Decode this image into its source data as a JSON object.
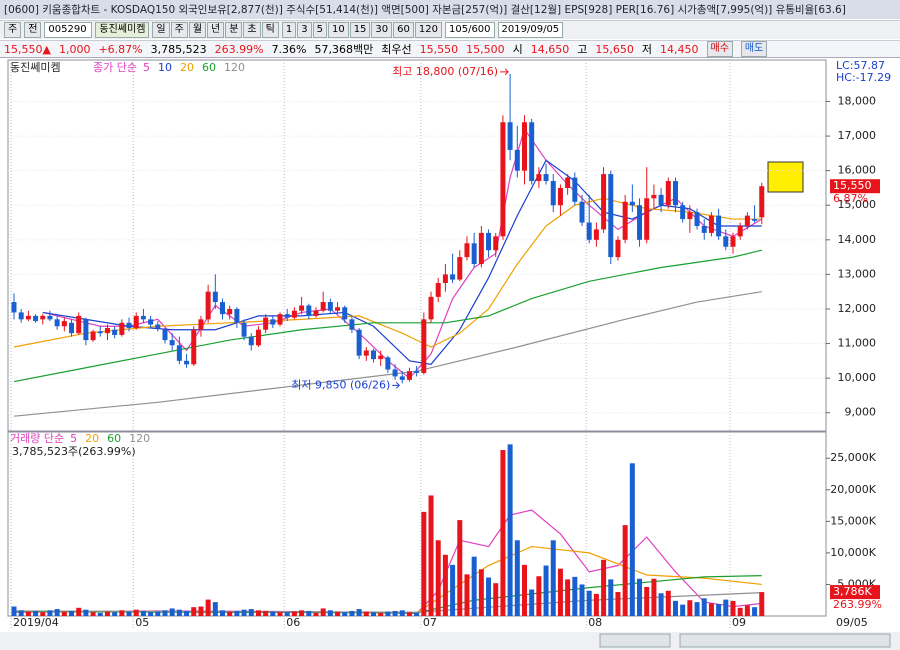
{
  "title_bar": {
    "text": "[0600] 키움종합차트 - KOSDAQ150 외국인보유[2,877(천)] 주식수[51,414(천)] 액면[500] 자본금[257(억)] 결산[12월] EPS[928] PER[16.76] 시가총액[7,995(억)] 유통비율[63.6]"
  },
  "toolbar": {
    "period": "주",
    "market": "전",
    "code": "005290",
    "name": "동진쎄미켐",
    "units": [
      "일",
      "주",
      "월",
      "년",
      "분",
      "초",
      "틱"
    ],
    "intervals": [
      "1",
      "3",
      "5",
      "10",
      "15",
      "30",
      "60",
      "120"
    ],
    "count": "105/600",
    "date": "2019/09/05"
  },
  "quote": {
    "price": "15,550▲",
    "change": "1,000",
    "change_pct": "+6.87%",
    "volume": "3,785,523",
    "volume_ratio": "263.99%",
    "turnover": "7.36%",
    "amount": "57,368백만",
    "best_label": "최우선",
    "ask": "15,550",
    "bid": "15,500",
    "open_label": "시",
    "open": "14,650",
    "high_label": "고",
    "high": "15,650",
    "low_label": "저",
    "low": "14,450",
    "buy": "매수",
    "sell": "매도"
  },
  "chart_data": {
    "type": "candlestick",
    "name": "동진쎄미켐",
    "price_legend": "종가 단순",
    "up_color": "#e8141c",
    "down_color": "#1a5fd0",
    "categories": [
      "2019/04",
      null,
      null,
      null,
      null,
      null,
      null,
      null,
      null,
      null,
      null,
      null,
      null,
      null,
      null,
      null,
      null,
      "05",
      null,
      null,
      null,
      null,
      null,
      null,
      null,
      null,
      null,
      null,
      null,
      null,
      null,
      null,
      null,
      null,
      null,
      null,
      null,
      null,
      "06",
      null,
      null,
      null,
      null,
      null,
      null,
      null,
      null,
      null,
      null,
      null,
      null,
      null,
      null,
      null,
      null,
      null,
      null,
      "07",
      null,
      null,
      null,
      null,
      null,
      null,
      null,
      null,
      null,
      null,
      null,
      null,
      null,
      null,
      null,
      null,
      null,
      null,
      null,
      null,
      null,
      null,
      "08",
      null,
      null,
      null,
      null,
      null,
      null,
      null,
      null,
      null,
      null,
      null,
      null,
      null,
      null,
      null,
      null,
      null,
      null,
      null,
      "09",
      null,
      null,
      null,
      null
    ],
    "ohlc": [
      [
        12200,
        12450,
        11700,
        11900
      ],
      [
        11900,
        12000,
        11600,
        11700
      ],
      [
        11700,
        11950,
        11650,
        11800
      ],
      [
        11800,
        11850,
        11600,
        11650
      ],
      [
        11700,
        11850,
        11550,
        11800
      ],
      [
        11800,
        11950,
        11650,
        11700
      ],
      [
        11700,
        11800,
        11400,
        11500
      ],
      [
        11500,
        11750,
        11350,
        11650
      ],
      [
        11600,
        11700,
        11200,
        11300
      ],
      [
        11300,
        11900,
        11250,
        11800
      ],
      [
        11700,
        11750,
        10950,
        11100
      ],
      [
        11100,
        11400,
        11050,
        11350
      ],
      [
        11350,
        11500,
        11200,
        11300
      ],
      [
        11300,
        11550,
        11100,
        11450
      ],
      [
        11400,
        11500,
        11150,
        11250
      ],
      [
        11250,
        11700,
        11200,
        11600
      ],
      [
        11600,
        11750,
        11350,
        11450
      ],
      [
        11450,
        11900,
        11400,
        11800
      ],
      [
        11800,
        12000,
        11600,
        11700
      ],
      [
        11700,
        11800,
        11450,
        11550
      ],
      [
        11550,
        11650,
        11350,
        11450
      ],
      [
        11400,
        11450,
        11000,
        11100
      ],
      [
        11100,
        11300,
        10800,
        10950
      ],
      [
        10950,
        11200,
        10400,
        10500
      ],
      [
        10500,
        10700,
        10300,
        10400
      ],
      [
        10400,
        11500,
        10350,
        11400
      ],
      [
        11400,
        11800,
        11200,
        11700
      ],
      [
        11700,
        12700,
        11600,
        12500
      ],
      [
        12500,
        13000,
        12000,
        12200
      ],
      [
        12200,
        12300,
        11700,
        11850
      ],
      [
        11850,
        12100,
        11700,
        12000
      ],
      [
        12000,
        12050,
        11450,
        11600
      ],
      [
        11600,
        11700,
        11100,
        11200
      ],
      [
        11200,
        11300,
        10800,
        10950
      ],
      [
        10950,
        11500,
        10900,
        11400
      ],
      [
        11400,
        11850,
        11300,
        11750
      ],
      [
        11700,
        11800,
        11450,
        11550
      ],
      [
        11550,
        11900,
        11500,
        11850
      ],
      [
        11850,
        12000,
        11650,
        11750
      ],
      [
        11750,
        12050,
        11700,
        11950
      ],
      [
        11950,
        12350,
        11850,
        12100
      ],
      [
        12100,
        12150,
        11700,
        11800
      ],
      [
        11800,
        12050,
        11750,
        11950
      ],
      [
        11950,
        12500,
        11900,
        12200
      ],
      [
        12200,
        12300,
        11850,
        11950
      ],
      [
        11950,
        12200,
        11850,
        12050
      ],
      [
        12050,
        12100,
        11600,
        11700
      ],
      [
        11700,
        11800,
        11300,
        11400
      ],
      [
        11400,
        11450,
        10550,
        10650
      ],
      [
        10650,
        10900,
        10500,
        10800
      ],
      [
        10800,
        10850,
        10450,
        10550
      ],
      [
        10550,
        10800,
        10350,
        10650
      ],
      [
        10600,
        10650,
        10150,
        10250
      ],
      [
        10250,
        10400,
        9950,
        10050
      ],
      [
        10050,
        10200,
        9850,
        9950
      ],
      [
        9950,
        10300,
        9900,
        10200
      ],
      [
        10200,
        10350,
        10050,
        10150
      ],
      [
        10150,
        11900,
        10100,
        11700
      ],
      [
        11700,
        12500,
        11600,
        12350
      ],
      [
        12350,
        12900,
        12200,
        12750
      ],
      [
        12750,
        13300,
        12500,
        13000
      ],
      [
        13000,
        13600,
        12750,
        12850
      ],
      [
        12850,
        13700,
        12800,
        13500
      ],
      [
        13500,
        14100,
        13400,
        13900
      ],
      [
        13900,
        14200,
        13200,
        13300
      ],
      [
        13300,
        14400,
        13200,
        14200
      ],
      [
        14200,
        14300,
        13500,
        13700
      ],
      [
        13700,
        14200,
        13500,
        14100
      ],
      [
        14100,
        17600,
        14000,
        17400
      ],
      [
        17400,
        18800,
        16300,
        16600
      ],
      [
        16600,
        17300,
        15800,
        16000
      ],
      [
        16000,
        17600,
        15600,
        17400
      ],
      [
        17400,
        17500,
        15600,
        15700
      ],
      [
        15700,
        16100,
        15500,
        15900
      ],
      [
        15900,
        16200,
        15600,
        15700
      ],
      [
        15700,
        15900,
        14800,
        15000
      ],
      [
        15000,
        15600,
        14700,
        15500
      ],
      [
        15500,
        15900,
        15300,
        15800
      ],
      [
        15800,
        15950,
        15000,
        15100
      ],
      [
        15100,
        15300,
        14400,
        14500
      ],
      [
        14500,
        15300,
        13900,
        14000
      ],
      [
        14000,
        14500,
        13800,
        14300
      ],
      [
        14300,
        16100,
        14200,
        15900
      ],
      [
        15900,
        16000,
        13300,
        13500
      ],
      [
        13500,
        14100,
        13400,
        14000
      ],
      [
        14000,
        15300,
        13900,
        15100
      ],
      [
        15100,
        15600,
        14800,
        15000
      ],
      [
        15000,
        15200,
        13800,
        14000
      ],
      [
        14000,
        16100,
        13900,
        15200
      ],
      [
        15200,
        15600,
        14900,
        15300
      ],
      [
        15300,
        15500,
        14800,
        15000
      ],
      [
        15000,
        15800,
        14900,
        15700
      ],
      [
        15700,
        15800,
        14800,
        15000
      ],
      [
        15000,
        15100,
        14500,
        14600
      ],
      [
        14600,
        15000,
        14200,
        14800
      ],
      [
        14800,
        14900,
        14300,
        14400
      ],
      [
        14400,
        14600,
        14000,
        14200
      ],
      [
        14200,
        14800,
        14100,
        14700
      ],
      [
        14700,
        14900,
        14000,
        14100
      ],
      [
        14100,
        14300,
        13700,
        13800
      ],
      [
        13800,
        14200,
        13600,
        14100
      ],
      [
        14100,
        14500,
        14000,
        14400
      ],
      [
        14400,
        14800,
        14300,
        14700
      ],
      [
        14600,
        15000,
        14500,
        14550
      ],
      [
        14650,
        15650,
        14450,
        15550
      ]
    ],
    "ylim": [
      8500,
      19200
    ],
    "yticks": [
      {
        "value": 9000,
        "label": "9,000"
      },
      {
        "value": 10000,
        "label": "10,000"
      },
      {
        "value": 11000,
        "label": "11,000"
      },
      {
        "value": 12000,
        "label": "12,000"
      },
      {
        "value": 13000,
        "label": "13,000"
      },
      {
        "value": 14000,
        "label": "14,000"
      },
      {
        "value": 15000,
        "label": "15,000"
      },
      {
        "value": 16000,
        "label": "16,000"
      },
      {
        "value": 17000,
        "label": "17,000"
      },
      {
        "value": 18000,
        "label": "18,000"
      }
    ],
    "ma_lines": [
      {
        "name": "5",
        "color": "#e040c0",
        "x": [
          4,
          8,
          12,
          16,
          20,
          24,
          28,
          32,
          36,
          40,
          44,
          48,
          52,
          55,
          58,
          61,
          64,
          67,
          69,
          71,
          74,
          77,
          80,
          84,
          88,
          92,
          96,
          100,
          104
        ],
        "values": [
          11900,
          11700,
          11500,
          11500,
          11700,
          10800,
          12100,
          11500,
          11600,
          11900,
          12000,
          11300,
          10500,
          10000,
          10700,
          12300,
          13200,
          13600,
          15800,
          17200,
          16300,
          15600,
          15000,
          14300,
          14800,
          15200,
          14400,
          14100,
          14600
        ]
      },
      {
        "name": "10",
        "color": "#1a3fd0",
        "x": [
          4,
          10,
          16,
          22,
          28,
          34,
          40,
          46,
          50,
          55,
          58,
          62,
          66,
          70,
          74,
          78,
          82,
          86,
          90,
          94,
          98,
          104
        ],
        "values": [
          11900,
          11700,
          11500,
          11400,
          11400,
          11800,
          11800,
          11900,
          11500,
          10500,
          10400,
          11400,
          12900,
          14700,
          16300,
          15700,
          14800,
          14600,
          15000,
          14900,
          14400,
          14400
        ]
      },
      {
        "name": "20",
        "color": "#f0a000",
        "x": [
          0,
          10,
          20,
          30,
          40,
          48,
          54,
          58,
          62,
          66,
          70,
          74,
          78,
          82,
          88,
          94,
          100,
          104
        ],
        "values": [
          10900,
          11300,
          11500,
          11600,
          11700,
          11800,
          11300,
          10900,
          11300,
          12000,
          13300,
          14400,
          15000,
          15200,
          14900,
          14800,
          14600,
          14600
        ]
      },
      {
        "name": "60",
        "color": "#1aa030",
        "x": [
          0,
          10,
          20,
          30,
          40,
          50,
          60,
          66,
          72,
          80,
          90,
          100,
          104
        ],
        "values": [
          9900,
          10300,
          10700,
          11100,
          11400,
          11600,
          11600,
          11800,
          12300,
          12800,
          13200,
          13500,
          13700
        ]
      },
      {
        "name": "120",
        "color": "#909090",
        "x": [
          0,
          20,
          40,
          56,
          70,
          85,
          95,
          104
        ],
        "values": [
          8900,
          9300,
          9800,
          10200,
          10900,
          11700,
          12200,
          12500
        ]
      }
    ],
    "lc_label": "LC:57.87",
    "hc_label": "HC:-17.29",
    "annotations": {
      "high": "최고 18,800 (07/16)",
      "low": "최저 9,850 (06/26)"
    },
    "last_price": {
      "value": 15550,
      "label": "15,550"
    },
    "last_change": "6.87%",
    "last_date": "09/05",
    "volume": {
      "legend": "거래량 단순",
      "summary": "3,785,523주(263.99%)",
      "values": [
        1500,
        900,
        700,
        800,
        600,
        900,
        1100,
        700,
        800,
        1300,
        1000,
        600,
        500,
        700,
        600,
        900,
        700,
        1000,
        800,
        600,
        700,
        900,
        1200,
        1000,
        800,
        1400,
        1500,
        2600,
        2200,
        900,
        700,
        800,
        1000,
        1100,
        900,
        800,
        700,
        600,
        600,
        700,
        900,
        800,
        500,
        1200,
        900,
        700,
        600,
        800,
        1100,
        700,
        600,
        500,
        700,
        800,
        900,
        600,
        500,
        16500,
        19100,
        12000,
        9700,
        8100,
        15200,
        6600,
        9400,
        7400,
        6100,
        5200,
        26300,
        27200,
        12000,
        8100,
        4200,
        6300,
        8000,
        12000,
        7500,
        5800,
        6200,
        5000,
        4000,
        3500,
        8900,
        5800,
        3800,
        14400,
        24200,
        5900,
        4600,
        5900,
        3600,
        4000,
        2400,
        1800,
        2500,
        2200,
        2800,
        2000,
        1900,
        2600,
        2400,
        1300,
        1700,
        1400,
        3786
      ],
      "ylim": [
        0,
        29000
      ],
      "yticks": [
        {
          "value": 5000,
          "label": "5,000K"
        },
        {
          "value": 10000,
          "label": "10,000K"
        },
        {
          "value": 15000,
          "label": "15,000K"
        },
        {
          "value": 20000,
          "label": "20,000K"
        },
        {
          "value": 25000,
          "label": "25,000K"
        }
      ],
      "ma_lines": [
        {
          "name": "5",
          "color": "#e040c0",
          "x": [
            0,
            20,
            40,
            56,
            59,
            62,
            66,
            69,
            72,
            76,
            80,
            84,
            88,
            92,
            96,
            100,
            104
          ],
          "values": [
            600,
            800,
            700,
            400,
            4000,
            12000,
            11000,
            16000,
            16800,
            13000,
            7000,
            8000,
            12500,
            7000,
            2200,
            1500,
            2000
          ]
        },
        {
          "name": "20",
          "color": "#f0a000",
          "x": [
            0,
            56,
            60,
            66,
            72,
            80,
            88,
            96,
            104
          ],
          "values": [
            700,
            500,
            3500,
            8000,
            11000,
            10000,
            6500,
            6000,
            5000
          ]
        },
        {
          "name": "60",
          "color": "#1aa030",
          "x": [
            0,
            56,
            64,
            80,
            96,
            104
          ],
          "values": [
            700,
            500,
            2500,
            4500,
            6200,
            6400
          ]
        },
        {
          "name": "120",
          "color": "#909090",
          "x": [
            0,
            56,
            80,
            104
          ],
          "values": [
            800,
            600,
            2500,
            3700
          ]
        }
      ],
      "last_label": "3,786K",
      "last_ratio": "263.99%"
    }
  }
}
